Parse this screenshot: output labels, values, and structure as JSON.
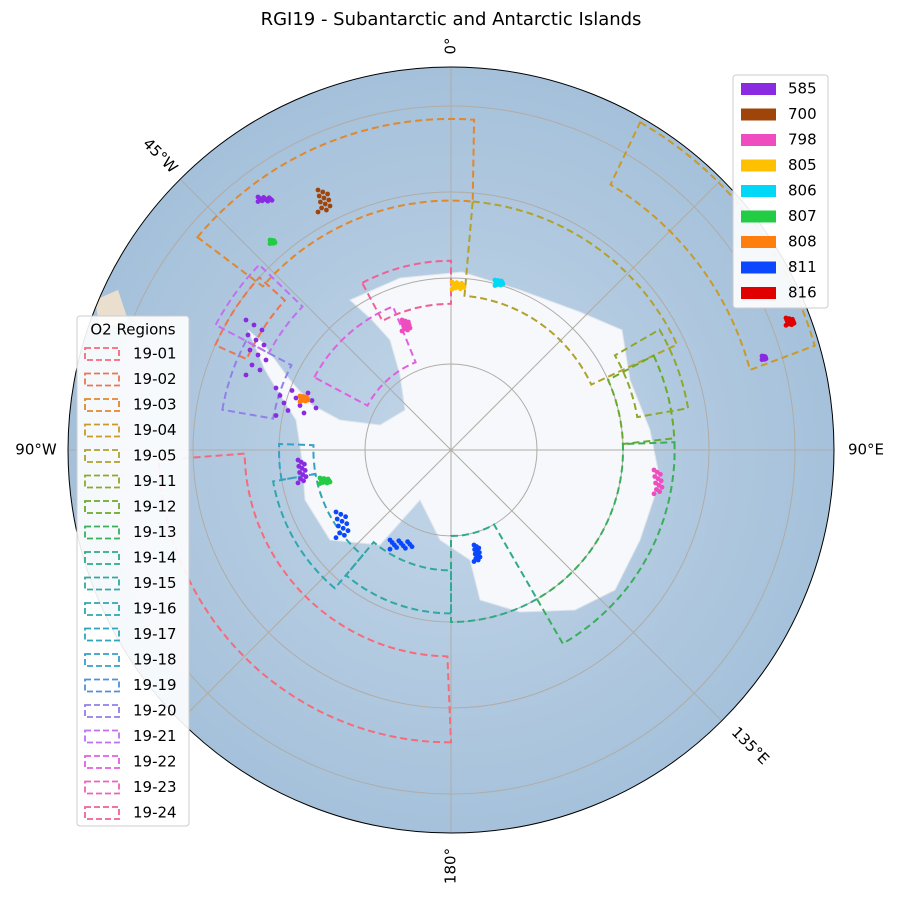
{
  "title": "RGI19 - Subantarctic and Antarctic Islands",
  "lon_labels": [
    "0°",
    "45°W",
    "90°W",
    "90°E",
    "135°E",
    "180°"
  ],
  "glacier_legend": {
    "items": [
      {
        "label": "585",
        "color": "#8a2be2"
      },
      {
        "label": "700",
        "color": "#a0450a"
      },
      {
        "label": "798",
        "color": "#ee4cbf"
      },
      {
        "label": "805",
        "color": "#ffc000"
      },
      {
        "label": "806",
        "color": "#00d8f8"
      },
      {
        "label": "807",
        "color": "#22cc44"
      },
      {
        "label": "808",
        "color": "#ff7f0e"
      },
      {
        "label": "811",
        "color": "#0b47ff"
      },
      {
        "label": "816",
        "color": "#e00000"
      }
    ]
  },
  "region_legend": {
    "title": "O2 Regions",
    "items": [
      {
        "label": "19-01",
        "color": "#f66a7a"
      },
      {
        "label": "19-02",
        "color": "#ea7650"
      },
      {
        "label": "19-03",
        "color": "#e0882c"
      },
      {
        "label": "19-04",
        "color": "#c99a2a"
      },
      {
        "label": "19-05",
        "color": "#b0a22a"
      },
      {
        "label": "19-11",
        "color": "#90a82a"
      },
      {
        "label": "19-12",
        "color": "#6aaa2a"
      },
      {
        "label": "19-13",
        "color": "#3aae5a"
      },
      {
        "label": "19-14",
        "color": "#30aa88"
      },
      {
        "label": "19-15",
        "color": "#30a8a0"
      },
      {
        "label": "19-16",
        "color": "#30a6ae"
      },
      {
        "label": "19-17",
        "color": "#30a4ba"
      },
      {
        "label": "19-18",
        "color": "#38a0c8"
      },
      {
        "label": "19-19",
        "color": "#5090d8"
      },
      {
        "label": "19-20",
        "color": "#9080e8"
      },
      {
        "label": "19-21",
        "color": "#c070f0"
      },
      {
        "label": "19-22",
        "color": "#e060e0"
      },
      {
        "label": "19-23",
        "color": "#f060c0"
      },
      {
        "label": "19-24",
        "color": "#f06098"
      }
    ]
  }
}
